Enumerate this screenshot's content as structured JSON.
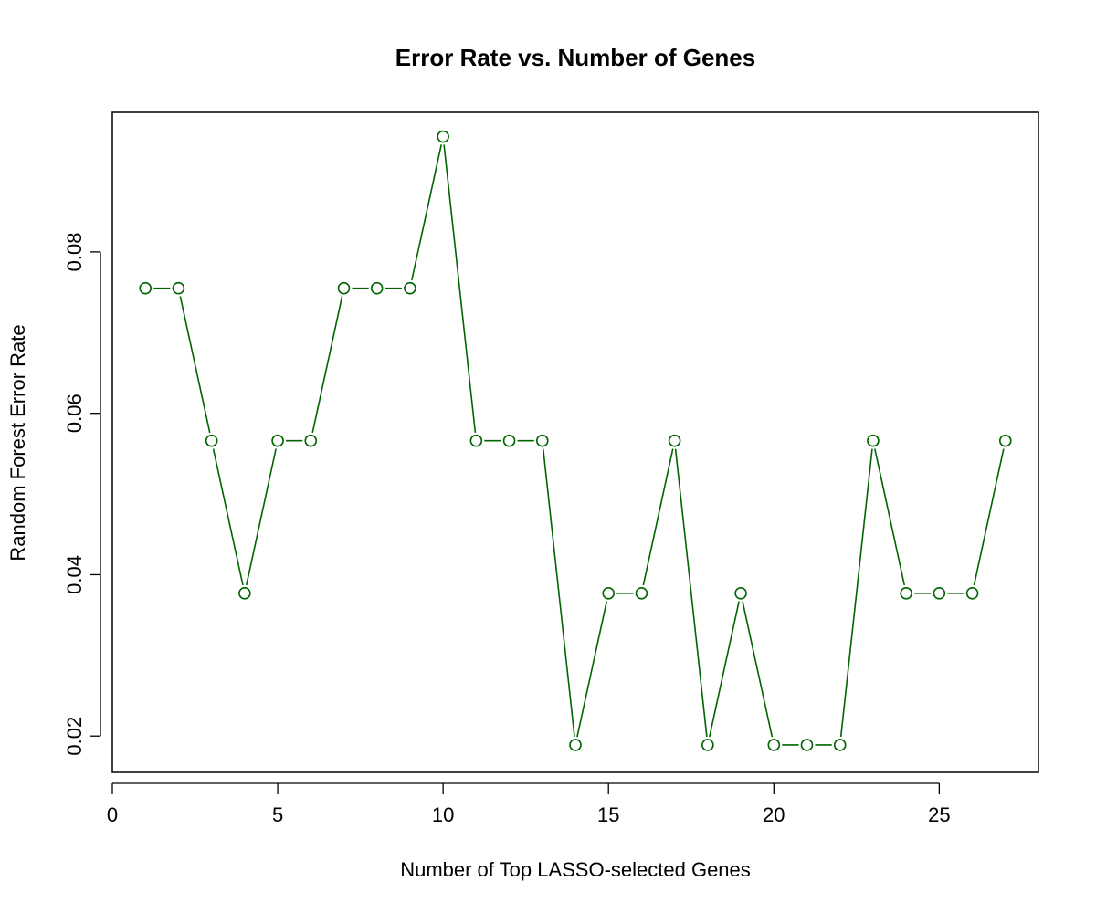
{
  "chart_data": {
    "type": "line",
    "title": "Error Rate vs. Number of Genes",
    "xlabel": "Number of Top LASSO-selected Genes",
    "ylabel": "Random Forest Error Rate",
    "xlim": [
      0,
      28
    ],
    "ylim": [
      0.0155,
      0.0973
    ],
    "x_ticks": [
      0,
      5,
      10,
      15,
      20,
      25
    ],
    "y_ticks": [
      0.02,
      0.04,
      0.06,
      0.08
    ],
    "x_tick_labels": [
      "0",
      "5",
      "10",
      "15",
      "20",
      "25"
    ],
    "y_tick_labels": [
      "0.02",
      "0.04",
      "0.06",
      "0.08"
    ],
    "grid": false,
    "legend": "none",
    "marker": "open-circle",
    "color": "#006400",
    "series": [
      {
        "x": [
          1,
          2,
          3,
          4,
          5,
          6,
          7,
          8,
          9,
          10,
          11,
          12,
          13,
          14,
          15,
          16,
          17,
          18,
          19,
          20,
          21,
          22,
          23,
          24,
          25,
          26,
          27
        ],
        "values": [
          0.0755,
          0.0755,
          0.0566,
          0.0377,
          0.0566,
          0.0566,
          0.0755,
          0.0755,
          0.0755,
          0.0943,
          0.0566,
          0.0566,
          0.0566,
          0.0189,
          0.0377,
          0.0377,
          0.0566,
          0.0189,
          0.0377,
          0.0189,
          0.0189,
          0.0189,
          0.0566,
          0.0377,
          0.0377,
          0.0377,
          0.0566
        ]
      }
    ]
  }
}
